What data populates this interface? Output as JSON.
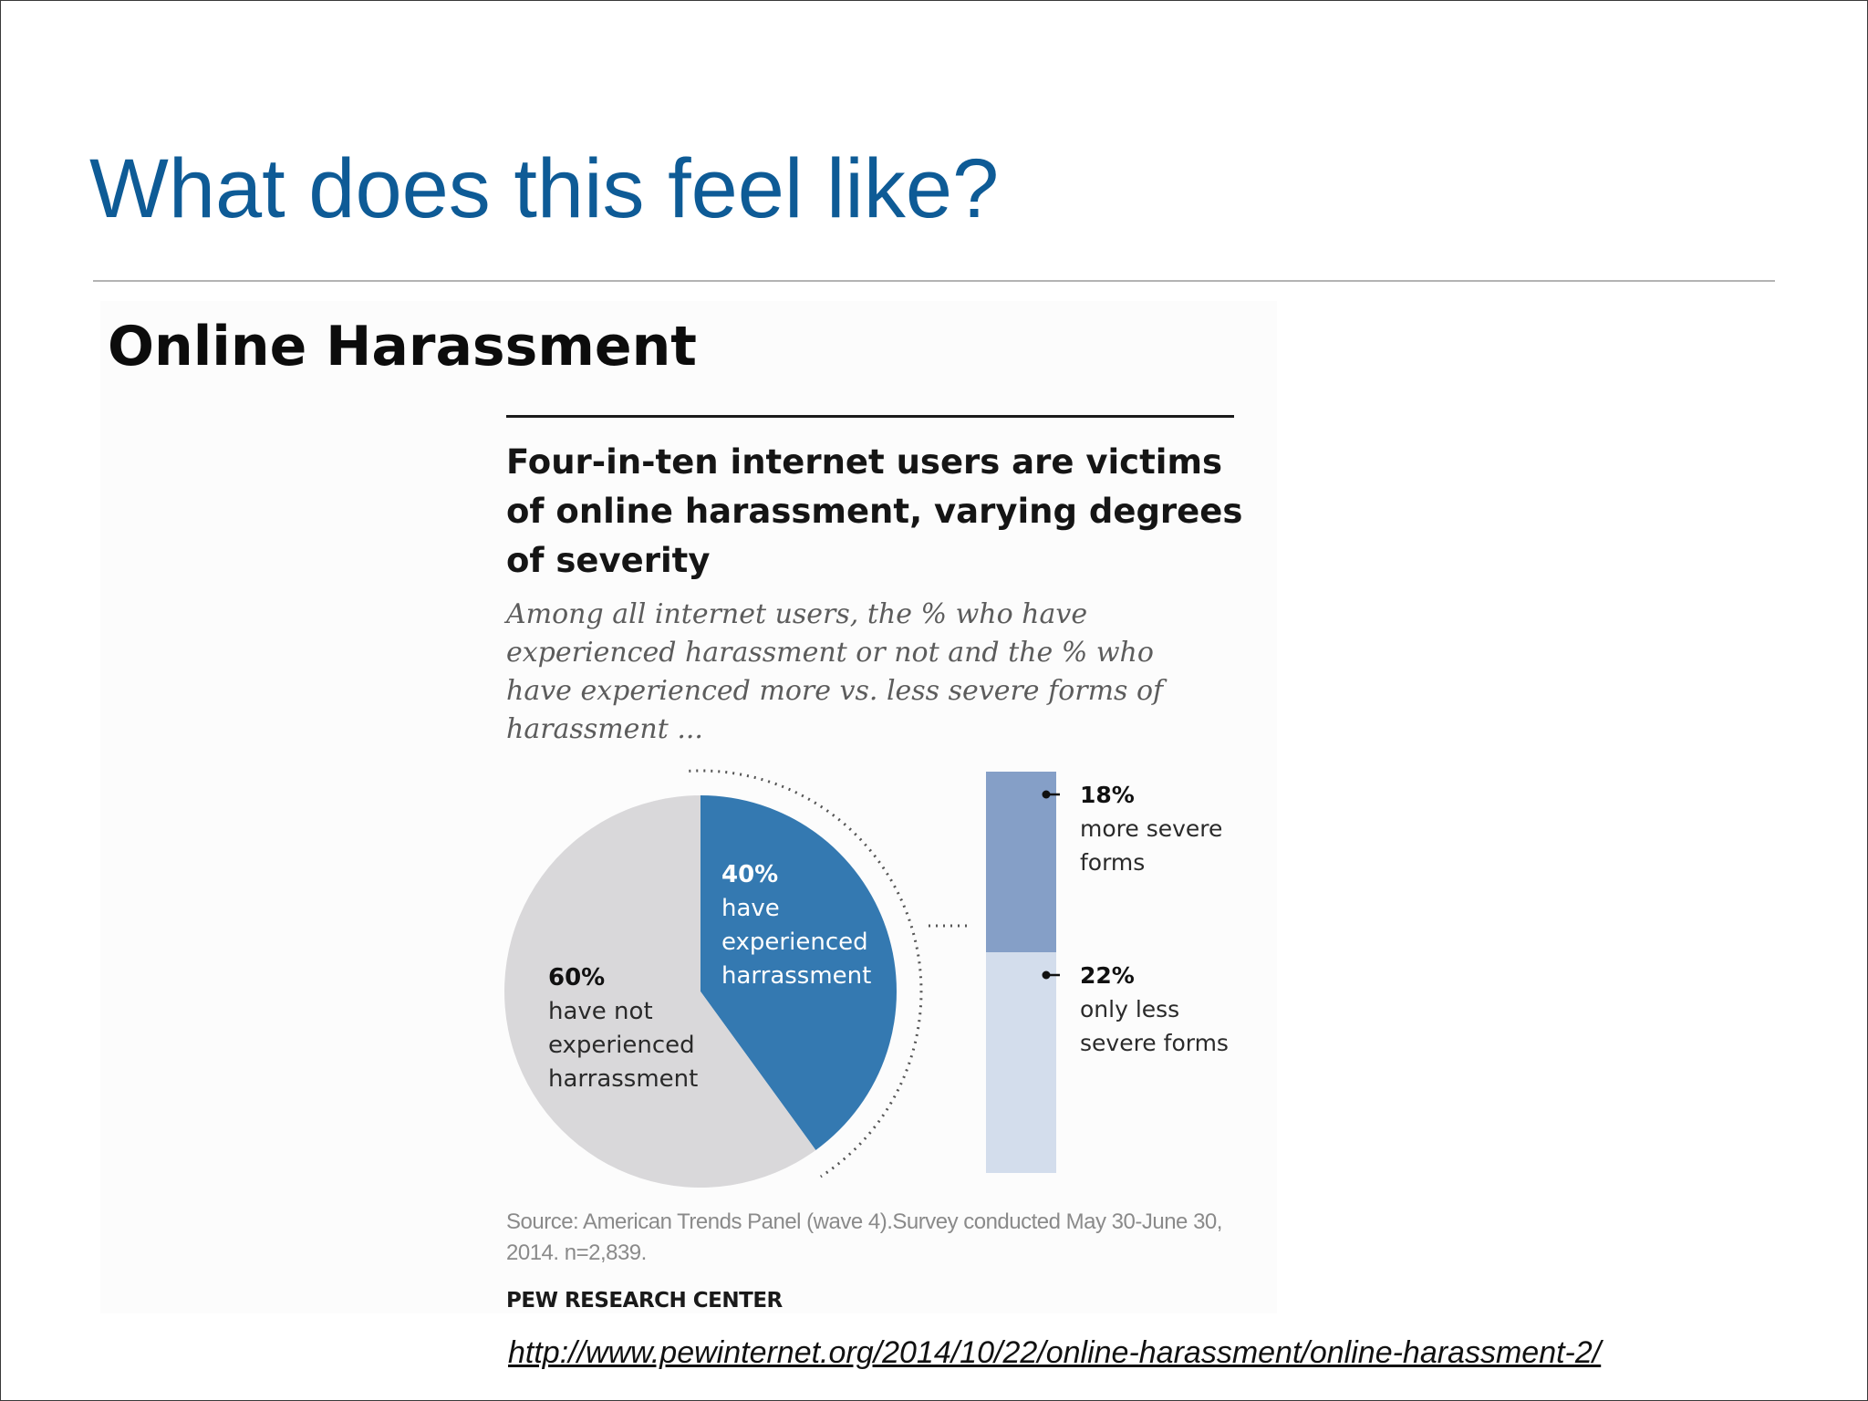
{
  "slide": {
    "title": "What does this feel like?",
    "figure_heading": "Online Harassment",
    "url": "http://www.pewinternet.org/2014/10/22/online-harassment/online-harassment-2/"
  },
  "colors": {
    "title": "#0e5b96",
    "pie_experienced": "#3479b1",
    "pie_not_experienced": "#d9d8da",
    "bar_more_severe": "#859fc7",
    "bar_less_severe": "#d3ddec"
  },
  "chart_data": {
    "type": "pie",
    "title": "Four-in-ten internet users are victims of online harassment, varying degrees of severity",
    "subtitle": "Among all internet users, the % who have experienced harassment or not and the % who have experienced more vs. less severe forms of harassment ...",
    "slices": [
      {
        "value": 40,
        "pct_label": "40%",
        "lines": [
          "have",
          "experienced",
          "harrassment"
        ],
        "color": "#3479b1"
      },
      {
        "value": 60,
        "pct_label": "60%",
        "lines": [
          "have not",
          "experienced",
          "harrassment"
        ],
        "color": "#d9d8da"
      }
    ],
    "breakdown": {
      "type": "stacked-bar",
      "of_slice": "40%",
      "segments": [
        {
          "value": 18,
          "pct_label": "18%",
          "lines": [
            "more severe",
            "forms"
          ],
          "color": "#859fc7"
        },
        {
          "value": 22,
          "pct_label": "22%",
          "lines": [
            "only less",
            "severe forms"
          ],
          "color": "#d3ddec"
        }
      ]
    },
    "source": "Source: American Trends Panel (wave 4).Survey conducted May 30-June 30, 2014. n=2,839.",
    "organization": "PEW RESEARCH CENTER"
  }
}
